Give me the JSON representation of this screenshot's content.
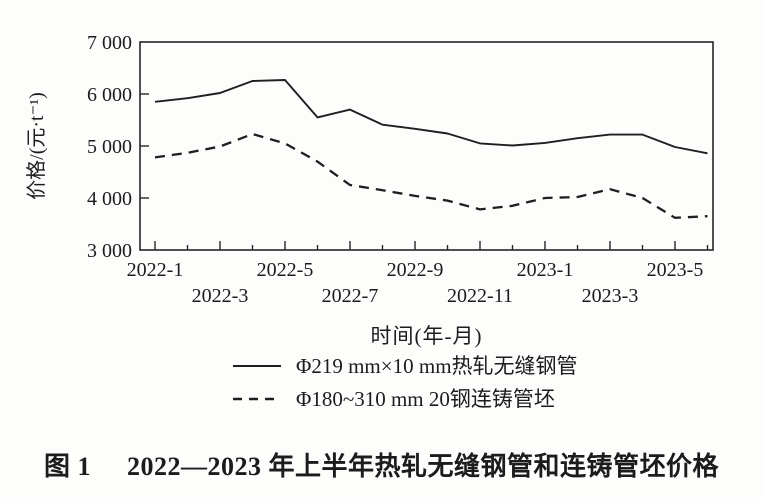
{
  "figure": {
    "caption": {
      "prefix": "图 1",
      "text": "2022—2023 年上半年热轧无缝钢管和连铸管坯价格"
    }
  },
  "chart_data": {
    "type": "line",
    "title": "2022—2023 年上半年热轧无缝钢管和连铸管坯价格",
    "xlabel": "时间(年-月)",
    "ylabel": "价格/(元·t⁻¹)",
    "ylim": [
      3000,
      7000
    ],
    "grid": false,
    "legend_position": "below-x-axis",
    "line_color": "#1f1f1f",
    "y_ticks": [
      {
        "label": "7 000",
        "value": 7000
      },
      {
        "label": "6 000",
        "value": 6000
      },
      {
        "label": "5 000",
        "value": 5000
      },
      {
        "label": "4 000",
        "value": 4000
      },
      {
        "label": "3 000",
        "value": 3000
      }
    ],
    "categories": [
      "2022-1",
      "2022-2",
      "2022-3",
      "2022-4",
      "2022-5",
      "2022-6",
      "2022-7",
      "2022-8",
      "2022-9",
      "2022-10",
      "2022-11",
      "2022-12",
      "2023-1",
      "2023-2",
      "2023-3",
      "2023-4",
      "2023-5",
      "2023-6"
    ],
    "x_tick_label_rows": {
      "row1": [
        "2022-1",
        "2022-5",
        "2022-9",
        "2023-1",
        "2023-5"
      ],
      "row2": [
        "2022-3",
        "2022-7",
        "2022-11",
        "2023-3"
      ]
    },
    "series": [
      {
        "name": "Φ219 mm×10 mm热轧无缝钢管",
        "line_style": "solid",
        "values": [
          5850,
          5920,
          6020,
          6250,
          6270,
          5550,
          5700,
          5410,
          5330,
          5240,
          5050,
          5010,
          5060,
          5150,
          5220,
          5220,
          4980,
          4860
        ]
      },
      {
        "name": "Φ180~310 mm 20钢连铸管坯",
        "line_style": "dashed",
        "values": [
          4780,
          4870,
          4990,
          5230,
          5050,
          4700,
          4250,
          4150,
          4040,
          3950,
          3780,
          3850,
          4000,
          4020,
          4170,
          4000,
          3620,
          3650
        ]
      }
    ]
  }
}
